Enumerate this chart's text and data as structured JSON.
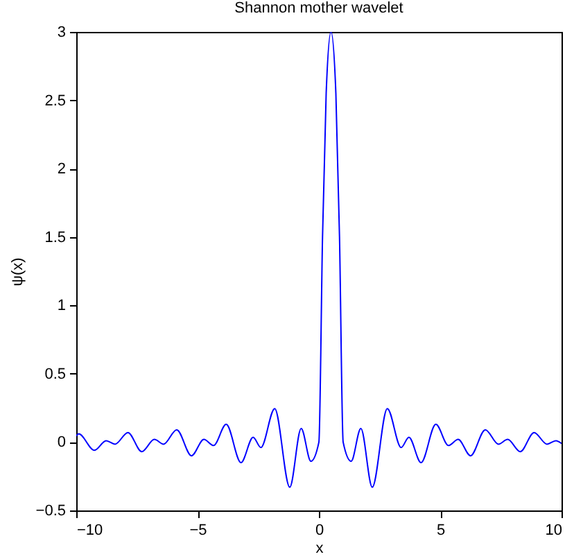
{
  "chart_data": {
    "type": "line",
    "title": "Shannon mother wavelet",
    "xlabel": "x",
    "ylabel": "ψ(x)",
    "xlim": [
      -10,
      10
    ],
    "xticks": [
      -10,
      -5,
      0,
      5,
      10
    ],
    "ylim": [
      -0.5,
      3
    ],
    "yticks": [
      -0.5,
      0,
      0.5,
      1,
      1.5,
      2,
      2.5,
      3
    ],
    "grid": false,
    "marker": "none",
    "line_style": "solid",
    "series": [
      {
        "color": "#0000ff",
        "x": [
          -10,
          -9.9,
          -9.25,
          -8.77,
          -8.4,
          -7.87,
          -7.3,
          -6.78,
          -6.4,
          -5.86,
          -5.25,
          -4.74,
          -4.34,
          -3.82,
          -3.21,
          -2.71,
          -2.39,
          -1.82,
          -1.2,
          -0.73,
          -0.33,
          0,
          0.15,
          0.3,
          0.5,
          0.7,
          0.85,
          1,
          1.33,
          1.73,
          2.2,
          2.82,
          3.39,
          3.71,
          4.21,
          4.82,
          5.34,
          5.74,
          6.25,
          6.86,
          7.4,
          7.78,
          8.3,
          8.87,
          9.4,
          9.77,
          10
        ],
        "values": [
          0.045,
          0.06,
          -0.06,
          0.01,
          -0.015,
          0.07,
          -0.07,
          0.02,
          -0.015,
          0.09,
          -0.1,
          0.02,
          -0.025,
          0.13,
          -0.15,
          0.035,
          -0.04,
          0.245,
          -0.33,
          0.1,
          -0.14,
          0,
          1.5,
          2.55,
          3,
          2.55,
          1.5,
          0,
          -0.14,
          0.1,
          -0.33,
          0.245,
          -0.04,
          0.035,
          -0.15,
          0.13,
          -0.025,
          0.02,
          -0.1,
          0.09,
          -0.015,
          0.02,
          -0.07,
          0.07,
          -0.015,
          0.01,
          -0.01
        ]
      }
    ]
  }
}
